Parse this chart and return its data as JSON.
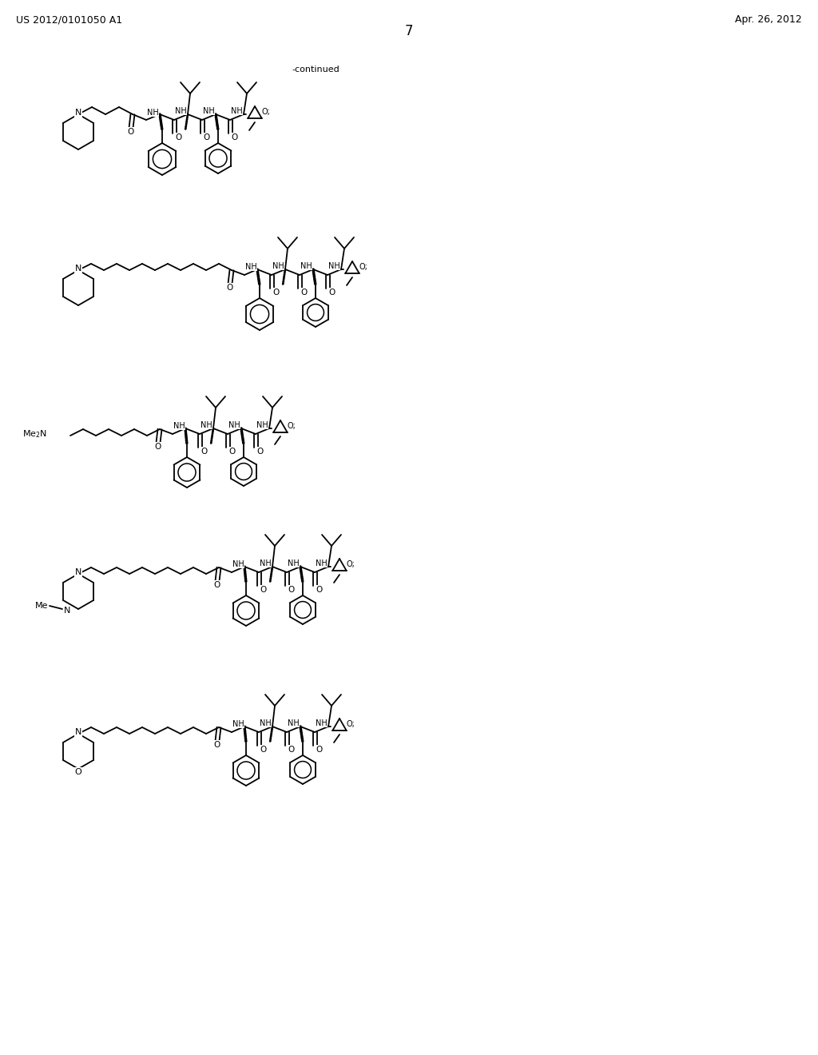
{
  "page_number": "7",
  "patent_number": "US 2012/0101050 A1",
  "patent_date": "Apr. 26, 2012",
  "continued_label": "-continued",
  "background_color": "#ffffff",
  "text_color": "#000000",
  "line_color": "#000000",
  "line_width": 1.3,
  "font_size_header": 9,
  "font_size_page": 12,
  "font_size_atom": 7.5
}
